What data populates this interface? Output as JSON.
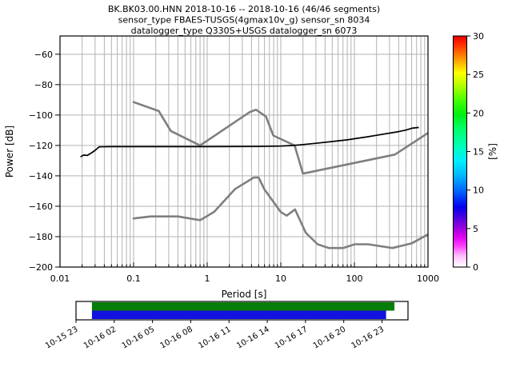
{
  "title": {
    "line1": "BK.BK03.00.HNN   2018-10-16 -- 2018-10-16  (46/46 segments)",
    "line2": "sensor_type FBAES-TUSGS(4gmax10v_g) sensor_sn 8034",
    "line3": "datalogger_type Q330S+USGS datalogger_sn 6073"
  },
  "chart_data": {
    "type": "heatmap",
    "description": "ObsPy probabilistic power spectral density (PPSD) plot with Peterson NLNM/NHNM noise model curves and data-availability timeline",
    "xlabel": "Period [s]",
    "ylabel": "Power [dB]",
    "xscale": "log",
    "xlim": [
      0.01,
      1000
    ],
    "ylim": [
      -200,
      -48
    ],
    "xticks": [
      0.01,
      0.1,
      1,
      10,
      100,
      1000
    ],
    "xtick_labels": [
      "0.01",
      "0.1",
      "1",
      "10",
      "100",
      "1000"
    ],
    "yticks": [
      -60,
      -80,
      -100,
      -120,
      -140,
      -160,
      -180,
      -200
    ],
    "ytick_labels": [
      "−60",
      "−80",
      "−100",
      "−120",
      "−140",
      "−160",
      "−180",
      "−200"
    ],
    "grid": true,
    "grid_color": "#b3b3b3",
    "colorbar": {
      "label": "[%]",
      "min": 0,
      "max": 30,
      "ticks": [
        0,
        5,
        10,
        15,
        20,
        25,
        30
      ],
      "tick_labels": [
        "0",
        "5",
        "10",
        "15",
        "20",
        "25",
        "30"
      ],
      "stops": [
        [
          0.0,
          "#ffffff"
        ],
        [
          0.05,
          "#ffbbff"
        ],
        [
          0.09,
          "#ff44ff"
        ],
        [
          0.13,
          "#dd00ee"
        ],
        [
          0.17,
          "#9900dd"
        ],
        [
          0.21,
          "#5500dd"
        ],
        [
          0.26,
          "#0000ee"
        ],
        [
          0.33,
          "#0066ff"
        ],
        [
          0.4,
          "#00bbff"
        ],
        [
          0.46,
          "#00eeff"
        ],
        [
          0.52,
          "#00ffbb"
        ],
        [
          0.6,
          "#00ff66"
        ],
        [
          0.66,
          "#00ee11"
        ],
        [
          0.72,
          "#44ff00"
        ],
        [
          0.79,
          "#bbff00"
        ],
        [
          0.84,
          "#ffff00"
        ],
        [
          0.91,
          "#ff8800"
        ],
        [
          0.97,
          "#ff2200"
        ],
        [
          1.0,
          "#e60000"
        ]
      ]
    },
    "noise_models": {
      "color": "#7f7f7f",
      "high": {
        "name": "NHNM",
        "periods": [
          0.1,
          0.22,
          0.32,
          0.8,
          3.8,
          4.6,
          6.3,
          7.9,
          15.4,
          20.0,
          354.8,
          1000
        ],
        "db": [
          -91.5,
          -97.4,
          -110.5,
          -120.0,
          -98.0,
          -96.5,
          -101.0,
          -113.5,
          -120.0,
          -138.5,
          -126.0,
          -111.8
        ]
      },
      "low": {
        "name": "NLNM",
        "periods": [
          0.1,
          0.17,
          0.4,
          0.8,
          1.24,
          2.4,
          4.3,
          5.0,
          6.0,
          10.0,
          12.0,
          15.6,
          21.9,
          31.6,
          45.0,
          70.0,
          101.0,
          154.0,
          328.0,
          600.0,
          1000
        ],
        "db": [
          -168.0,
          -166.7,
          -166.7,
          -169.2,
          -163.7,
          -148.6,
          -141.1,
          -141.1,
          -149.0,
          -163.8,
          -166.2,
          -162.1,
          -177.5,
          -185.0,
          -187.5,
          -187.5,
          -185.0,
          -185.0,
          -187.5,
          -184.4,
          -178.5
        ]
      }
    },
    "ppsd": {
      "mode_color": "#000000",
      "mode": {
        "periods": [
          0.019,
          0.021,
          0.0235,
          0.027,
          0.03,
          0.034,
          0.05,
          0.1,
          1,
          5,
          10,
          15,
          20,
          30,
          50,
          80,
          100,
          150,
          200,
          300,
          400,
          500,
          600,
          700,
          750
        ],
        "db": [
          -127.5,
          -126.3,
          -126.6,
          -124.8,
          -123.2,
          -120.9,
          -120.8,
          -120.8,
          -120.8,
          -120.7,
          -120.4,
          -120.0,
          -119.4,
          -118.6,
          -117.4,
          -116.3,
          -115.6,
          -114.3,
          -113.3,
          -111.9,
          -110.9,
          -109.9,
          -108.7,
          -108.3,
          -108.2
        ]
      },
      "spread_sigma": {
        "periods": [
          0.019,
          0.024,
          0.03,
          8,
          15,
          30,
          80,
          200,
          500,
          740
        ],
        "sigma_db": [
          1.1,
          0.8,
          0.55,
          0.55,
          0.75,
          1.0,
          1.3,
          1.6,
          1.9,
          2.1
        ]
      },
      "max_percentage": {
        "periods": [
          0.019,
          8,
          30,
          100,
          300,
          740
        ],
        "pct": [
          30,
          30,
          28,
          26,
          25,
          24
        ]
      },
      "period_min": 0.0185,
      "period_max": 740,
      "period_step_octaves": 0.125,
      "db_bin_width": 1,
      "min_visible_pct": 1.8,
      "seed": 7
    }
  },
  "timeline": {
    "tick_labels": [
      "10-15 23",
      "10-16 02",
      "10-16 05",
      "10-16 08",
      "10-16 11",
      "10-16 14",
      "10-16 17",
      "10-16 20",
      "10-16 23"
    ],
    "bars": [
      {
        "name": "coverage-green",
        "color": "#067d06",
        "x0": 0.048,
        "x1": 0.959,
        "row": 0
      },
      {
        "name": "coverage-blue",
        "color": "#1212e0",
        "x0": 0.048,
        "x1": 0.934,
        "row": 1
      }
    ]
  }
}
